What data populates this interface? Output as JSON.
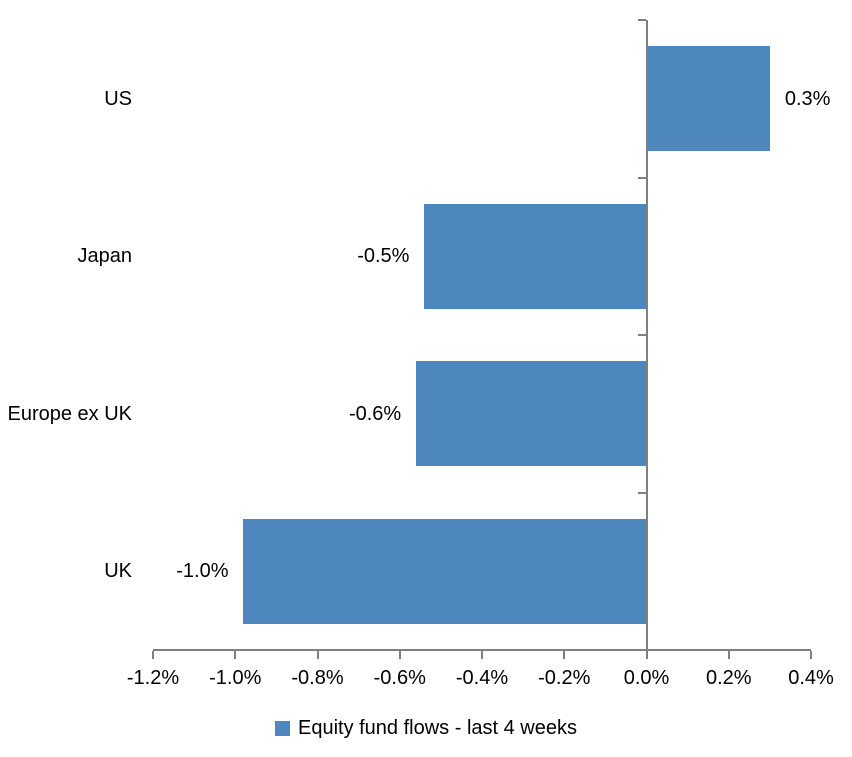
{
  "chart_data": {
    "type": "bar",
    "orientation": "horizontal",
    "title": "",
    "categories": [
      "US",
      "Japan",
      "Europe ex UK",
      "UK"
    ],
    "values": [
      0.3,
      -0.5,
      -0.6,
      -1.0
    ],
    "data_labels": [
      "0.3%",
      "-0.5%",
      "-0.6%",
      "-1.0%"
    ],
    "plot_values": [
      0.3,
      -0.54,
      -0.56,
      -0.98
    ],
    "x_tick_values": [
      -1.2,
      -1.0,
      -0.8,
      -0.6,
      -0.4,
      -0.2,
      0.0,
      0.2,
      0.4
    ],
    "x_tick_labels": [
      "-1.2%",
      "-1.0%",
      "-0.8%",
      "-0.6%",
      "-0.4%",
      "-0.2%",
      "0.0%",
      "0.2%",
      "0.4%"
    ],
    "xlim": [
      -1.2,
      0.4
    ],
    "xlabel": "",
    "ylabel": "",
    "grid": false,
    "legend": "Equity fund flows - last 4 weeks",
    "legend_position": "bottom",
    "bar_color": "#4E86BE",
    "axis_color": "#7F7F7F",
    "text_color": "#000000",
    "background_color": "#FFFFFF"
  }
}
